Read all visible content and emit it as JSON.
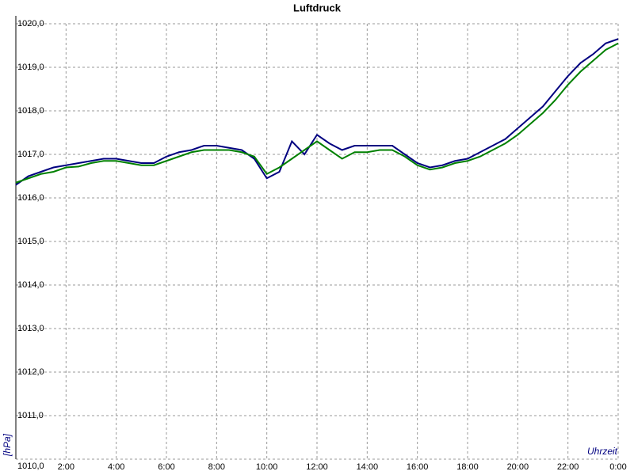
{
  "chart_data": {
    "type": "line",
    "title": "Luftdruck",
    "x_label": "Uhrzeit",
    "y_label": "[hPa]",
    "x": [
      0,
      0.5,
      1,
      1.5,
      2,
      2.5,
      3,
      3.5,
      4,
      4.5,
      5,
      5.5,
      6,
      6.5,
      7,
      7.5,
      8,
      8.5,
      9,
      9.5,
      10,
      10.5,
      11,
      11.5,
      12,
      12.5,
      13,
      13.5,
      14,
      14.5,
      15,
      15.5,
      16,
      16.5,
      17,
      17.5,
      18,
      18.5,
      19,
      19.5,
      20,
      20.5,
      21,
      21.5,
      22,
      22.5,
      23,
      23.5,
      24
    ],
    "series": [
      {
        "color": "#000080",
        "values": [
          1016.3,
          1016.5,
          1016.6,
          1016.7,
          1016.75,
          1016.8,
          1016.85,
          1016.9,
          1016.9,
          1016.85,
          1016.8,
          1016.8,
          1016.95,
          1017.05,
          1017.1,
          1017.2,
          1017.2,
          1017.15,
          1017.1,
          1016.9,
          1016.45,
          1016.6,
          1017.3,
          1017.0,
          1017.45,
          1017.25,
          1017.1,
          1017.2,
          1017.2,
          1017.2,
          1017.2,
          1017.0,
          1016.8,
          1016.7,
          1016.75,
          1016.85,
          1016.9,
          1017.05,
          1017.2,
          1017.35,
          1017.6,
          1017.85,
          1018.1,
          1018.45,
          1018.8,
          1019.1,
          1019.3,
          1019.55,
          1019.65
        ]
      },
      {
        "color": "#008000",
        "values": [
          1016.35,
          1016.45,
          1016.55,
          1016.6,
          1016.7,
          1016.72,
          1016.8,
          1016.85,
          1016.85,
          1016.8,
          1016.75,
          1016.75,
          1016.85,
          1016.95,
          1017.05,
          1017.1,
          1017.1,
          1017.1,
          1017.05,
          1016.95,
          1016.55,
          1016.7,
          1016.9,
          1017.1,
          1017.3,
          1017.1,
          1016.9,
          1017.05,
          1017.05,
          1017.1,
          1017.1,
          1016.95,
          1016.75,
          1016.65,
          1016.7,
          1016.8,
          1016.85,
          1016.95,
          1017.1,
          1017.25,
          1017.45,
          1017.7,
          1017.95,
          1018.25,
          1018.6,
          1018.9,
          1019.15,
          1019.4,
          1019.55
        ]
      }
    ],
    "xlim": [
      0,
      24
    ],
    "xticks": [
      {
        "value": 2,
        "label": "2:00"
      },
      {
        "value": 4,
        "label": "4:00"
      },
      {
        "value": 6,
        "label": "6:00"
      },
      {
        "value": 8,
        "label": "8:00"
      },
      {
        "value": 10,
        "label": "10:00"
      },
      {
        "value": 12,
        "label": "12:00"
      },
      {
        "value": 14,
        "label": "14:00"
      },
      {
        "value": 16,
        "label": "16:00"
      },
      {
        "value": 18,
        "label": "18:00"
      },
      {
        "value": 20,
        "label": "20:00"
      },
      {
        "value": 22,
        "label": "22:00"
      },
      {
        "value": 24,
        "label": "0:00"
      }
    ],
    "ylim": [
      1010,
      1020
    ],
    "yticks": [
      {
        "value": 1010,
        "label": "1010,0"
      },
      {
        "value": 1011,
        "label": "1011,0"
      },
      {
        "value": 1012,
        "label": "1012,0"
      },
      {
        "value": 1013,
        "label": "1013,0"
      },
      {
        "value": 1014,
        "label": "1014,0"
      },
      {
        "value": 1015,
        "label": "1015,0"
      },
      {
        "value": 1016,
        "label": "1016,0"
      },
      {
        "value": 1017,
        "label": "1017,0"
      },
      {
        "value": 1018,
        "label": "1018,0"
      },
      {
        "value": 1019,
        "label": "1019,0"
      },
      {
        "value": 1020,
        "label": "1020,0"
      }
    ],
    "grid": true
  }
}
